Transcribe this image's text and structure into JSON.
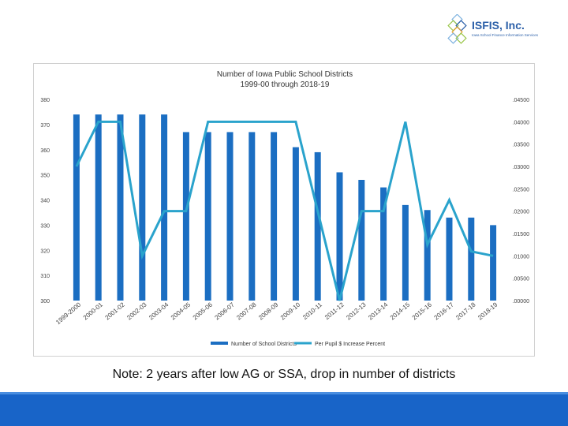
{
  "logo": {
    "title": "ISFIS, Inc.",
    "subtitle": "Iowa School Finance Information Services"
  },
  "note": "Note: 2 years after low AG or SSA, drop in number of districts",
  "colors": {
    "bar": "#1b6ec2",
    "line": "#2aa3cc",
    "footer": "#1864c8"
  },
  "chart_data": {
    "type": "bar",
    "title_line1": "Number of Iowa Public School Districts",
    "title_line2": "1999-00 through 2018-19",
    "categories": [
      "1999-2000",
      "2000-01",
      "2001-02",
      "2002-03",
      "2003-04",
      "2004-05",
      "2005-06",
      "2006-07",
      "2007-08",
      "2008-09",
      "2009-10",
      "2010-11",
      "2011-12",
      "2012-13",
      "2013-14",
      "2014-15",
      "2015-16",
      "2016-17",
      "2017-18",
      "2018-19"
    ],
    "series": [
      {
        "name": "Number of School Districts",
        "axis": "left",
        "kind": "bar",
        "values": [
          374,
          374,
          374,
          374,
          374,
          367,
          367,
          367,
          367,
          367,
          361,
          359,
          351,
          348,
          345,
          338,
          336,
          333,
          333,
          330
        ]
      },
      {
        "name": "Per Pupil $ Increase Percent",
        "axis": "right",
        "kind": "line",
        "values": [
          0.03,
          0.04,
          0.04,
          0.01,
          0.02,
          0.02,
          0.04,
          0.04,
          0.04,
          0.04,
          0.04,
          0.02,
          0.0,
          0.02,
          0.02,
          0.04,
          0.0125,
          0.0225,
          0.011,
          0.01
        ]
      }
    ],
    "left_axis": {
      "min": 300,
      "max": 380,
      "ticks": [
        "300",
        "310",
        "320",
        "330",
        "340",
        "350",
        "360",
        "370",
        "380"
      ]
    },
    "right_axis": {
      "min": 0,
      "max": 0.045,
      "ticks": [
        ".00000",
        ".00500",
        ".01000",
        ".01500",
        ".02000",
        ".02500",
        ".03000",
        ".03500",
        ".04000",
        ".04500"
      ]
    },
    "legend_position": "bottom-center"
  }
}
